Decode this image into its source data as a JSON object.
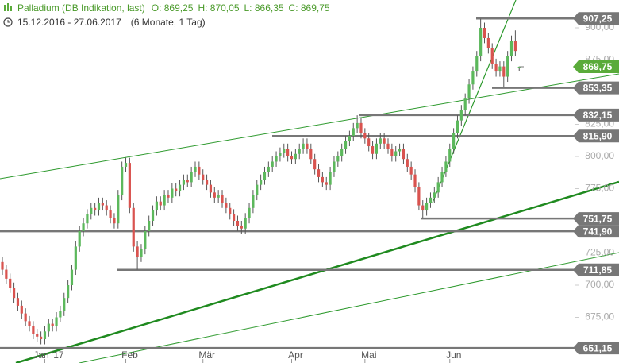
{
  "chart_data": {
    "type": "candlestick",
    "title": "Palladium (DB Indikation, last)",
    "open_label": "O: 869,25",
    "high_label": "H: 870,05",
    "low_label": "L: 866,35",
    "close_label": "C: 869,75",
    "date_range": "15.12.2016 - 27.06.2017",
    "period": "(6 Monate, 1 Tag)",
    "up_color": "#5cb85c",
    "down_color": "#d9534f",
    "wick_color": "#555555",
    "ylim": [
      639.5,
      921.6
    ],
    "yticks": [
      {
        "value": 900,
        "label": "900,00"
      },
      {
        "value": 875,
        "label": "875,00"
      },
      {
        "value": 825,
        "label": "825,00"
      },
      {
        "value": 800,
        "label": "800,00"
      },
      {
        "value": 775,
        "label": "775,00"
      },
      {
        "value": 725,
        "label": "725,00"
      },
      {
        "value": 700,
        "label": "700,00"
      },
      {
        "value": 675,
        "label": "675,00"
      }
    ],
    "levels": [
      {
        "value": 907.25,
        "label": "907,25"
      },
      {
        "value": 853.35,
        "label": "853,35"
      },
      {
        "value": 832.15,
        "label": "832,15"
      },
      {
        "value": 815.9,
        "label": "815,90"
      },
      {
        "value": 751.75,
        "label": "751,75"
      },
      {
        "value": 741.9,
        "label": "741,90"
      },
      {
        "value": 711.85,
        "label": "711,85"
      },
      {
        "value": 651.15,
        "label": "651,15"
      }
    ],
    "level_color": "#777777",
    "current_price": {
      "value": 869.75,
      "label": "869,75",
      "color": "#5aab3a"
    },
    "categories": [
      null,
      null,
      null,
      null,
      null,
      null,
      null,
      null,
      null,
      null,
      null,
      "Jan '17",
      null,
      null,
      null,
      null,
      null,
      null,
      null,
      null,
      null,
      null,
      null,
      null,
      null,
      null,
      null,
      null,
      null,
      null,
      null,
      null,
      "Feb",
      null,
      null,
      null,
      null,
      null,
      null,
      null,
      null,
      null,
      null,
      null,
      null,
      null,
      null,
      null,
      null,
      null,
      null,
      null,
      "Mär",
      null,
      null,
      null,
      null,
      null,
      null,
      null,
      null,
      null,
      null,
      null,
      null,
      null,
      null,
      null,
      null,
      null,
      null,
      null,
      null,
      null,
      null,
      "Apr",
      null,
      null,
      null,
      null,
      null,
      null,
      null,
      null,
      null,
      null,
      null,
      null,
      null,
      null,
      null,
      null,
      null,
      null,
      "Mai",
      null,
      null,
      null,
      null,
      null,
      null,
      null,
      null,
      null,
      null,
      null,
      null,
      null,
      null,
      null,
      null,
      null,
      null,
      null,
      null,
      null,
      "Jun",
      null,
      null,
      null,
      null,
      null,
      null,
      null,
      null,
      null,
      null,
      null,
      null,
      null,
      null,
      null,
      null,
      null,
      null
    ],
    "open": [
      718,
      712,
      705,
      698,
      690,
      684,
      678,
      672,
      668,
      662,
      660,
      658,
      664,
      670,
      668,
      675,
      680,
      690,
      700,
      712,
      730,
      742,
      748,
      755,
      760,
      758,
      764,
      762,
      758,
      752,
      748,
      770,
      792,
      795,
      760,
      730,
      722,
      728,
      742,
      750,
      758,
      765,
      762,
      770,
      768,
      775,
      773,
      778,
      782,
      780,
      788,
      792,
      786,
      782,
      778,
      772,
      768,
      770,
      764,
      760,
      755,
      750,
      746,
      744,
      752,
      760,
      770,
      778,
      782,
      788,
      792,
      796,
      800,
      803,
      806,
      800,
      798,
      802,
      806,
      810,
      806,
      798,
      790,
      784,
      780,
      778,
      788,
      796,
      800,
      806,
      812,
      816,
      822,
      826,
      818,
      814,
      808,
      802,
      810,
      814,
      810,
      806,
      800,
      804,
      806,
      798,
      792,
      786,
      776,
      762,
      758,
      764,
      768,
      772,
      780,
      788,
      796,
      806,
      818,
      828,
      836,
      845,
      856,
      866,
      878,
      900,
      892,
      884,
      872,
      866,
      870,
      862,
      878,
      890,
      869.25
    ],
    "high": [
      722,
      716,
      709,
      702,
      694,
      688,
      682,
      676,
      672,
      666,
      664,
      668,
      674,
      674,
      679,
      684,
      694,
      704,
      716,
      734,
      746,
      752,
      759,
      764,
      764,
      768,
      768,
      766,
      762,
      756,
      774,
      796,
      799,
      799,
      764,
      734,
      732,
      746,
      754,
      762,
      769,
      769,
      774,
      774,
      779,
      779,
      782,
      786,
      786,
      792,
      796,
      796,
      790,
      786,
      782,
      776,
      774,
      774,
      768,
      764,
      759,
      754,
      750,
      756,
      764,
      774,
      782,
      786,
      792,
      796,
      800,
      804,
      807,
      810,
      810,
      804,
      806,
      810,
      814,
      814,
      810,
      802,
      794,
      788,
      784,
      792,
      800,
      804,
      810,
      816,
      820,
      826,
      832,
      830,
      822,
      818,
      812,
      814,
      818,
      818,
      814,
      810,
      808,
      810,
      810,
      802,
      796,
      790,
      780,
      766,
      768,
      772,
      776,
      784,
      792,
      800,
      810,
      822,
      832,
      840,
      849,
      860,
      870,
      882,
      907,
      904,
      896,
      888,
      876,
      874,
      874,
      882,
      894,
      898,
      870.05
    ],
    "low": [
      708,
      701,
      694,
      686,
      680,
      674,
      668,
      664,
      658,
      656,
      654,
      654,
      660,
      664,
      664,
      671,
      676,
      686,
      696,
      708,
      726,
      738,
      744,
      751,
      754,
      754,
      758,
      754,
      748,
      744,
      744,
      766,
      788,
      756,
      726,
      712,
      718,
      724,
      738,
      746,
      754,
      758,
      758,
      764,
      764,
      769,
      769,
      774,
      776,
      776,
      784,
      782,
      778,
      774,
      768,
      764,
      764,
      760,
      756,
      751,
      746,
      742,
      740,
      740,
      748,
      756,
      766,
      774,
      778,
      784,
      788,
      792,
      796,
      799,
      796,
      794,
      794,
      798,
      802,
      802,
      794,
      786,
      780,
      776,
      774,
      774,
      784,
      792,
      796,
      802,
      808,
      812,
      818,
      814,
      810,
      804,
      798,
      798,
      806,
      806,
      802,
      796,
      796,
      800,
      794,
      788,
      782,
      772,
      758,
      752,
      754,
      760,
      764,
      768,
      776,
      784,
      792,
      802,
      814,
      824,
      832,
      841,
      852,
      862,
      874,
      888,
      880,
      868,
      862,
      862,
      854,
      858,
      874,
      878,
      866.35
    ],
    "close": [
      712,
      705,
      698,
      690,
      684,
      678,
      672,
      668,
      662,
      660,
      658,
      664,
      670,
      668,
      675,
      680,
      690,
      700,
      712,
      730,
      742,
      748,
      755,
      760,
      758,
      764,
      762,
      758,
      752,
      748,
      770,
      792,
      795,
      760,
      730,
      722,
      728,
      742,
      750,
      758,
      765,
      762,
      770,
      768,
      775,
      773,
      778,
      782,
      780,
      788,
      792,
      786,
      782,
      778,
      772,
      768,
      770,
      764,
      760,
      755,
      750,
      746,
      744,
      752,
      760,
      770,
      778,
      782,
      788,
      792,
      796,
      800,
      803,
      806,
      800,
      798,
      802,
      806,
      810,
      806,
      798,
      790,
      784,
      780,
      778,
      788,
      796,
      800,
      806,
      812,
      816,
      822,
      826,
      818,
      814,
      808,
      802,
      810,
      814,
      810,
      806,
      800,
      804,
      806,
      798,
      792,
      786,
      776,
      762,
      758,
      764,
      768,
      772,
      780,
      788,
      796,
      806,
      818,
      828,
      836,
      845,
      856,
      866,
      878,
      900,
      892,
      884,
      872,
      866,
      870,
      862,
      878,
      890,
      882,
      869.75
    ]
  }
}
